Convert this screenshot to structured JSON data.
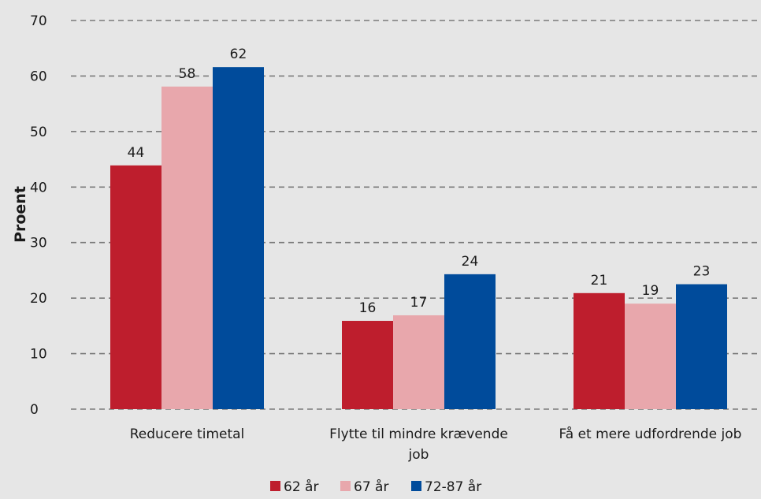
{
  "chart_data": {
    "type": "bar",
    "title": "",
    "xlabel": "",
    "ylabel": "Proent",
    "ylim": [
      0,
      70
    ],
    "yticks": [
      0,
      10,
      20,
      30,
      40,
      50,
      60,
      70
    ],
    "grid": "horizontal-dashed",
    "legend_position": "bottom-center",
    "categories": [
      [
        "Reducere timetal"
      ],
      [
        "Flytte til mindre krævende",
        "job"
      ],
      [
        "Få et mere udfordrende job"
      ]
    ],
    "series": [
      {
        "name": "62 år",
        "color": "#be1e2d",
        "values": [
          44,
          16,
          21
        ],
        "value_labels": [
          "44",
          "16",
          "21"
        ]
      },
      {
        "name": "67 år",
        "color": "#e8a7ac",
        "values": [
          58,
          17,
          19
        ],
        "value_labels": [
          "58",
          "17",
          "19"
        ]
      },
      {
        "name": "72-87 år",
        "color": "#004b9b",
        "values": [
          62,
          24,
          23
        ],
        "value_labels": [
          "62",
          "24",
          "23"
        ]
      }
    ],
    "bar_heights_estimated": [
      [
        43.9,
        15.9,
        20.9
      ],
      [
        58.1,
        16.9,
        19.0
      ],
      [
        61.6,
        24.3,
        22.5
      ]
    ]
  }
}
